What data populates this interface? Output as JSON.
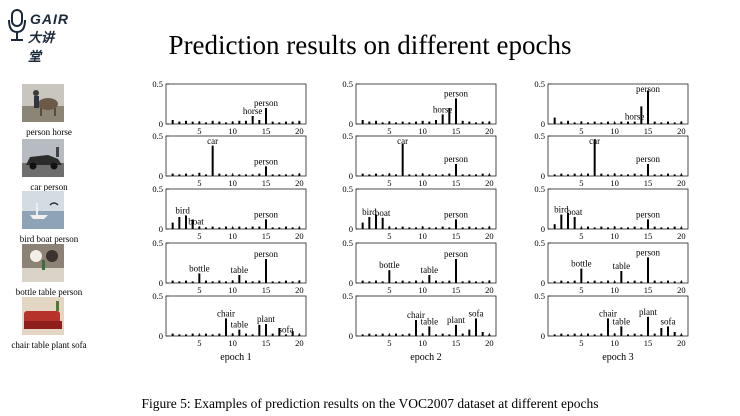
{
  "slide": {
    "logo_en": "GAIR",
    "logo_cn": "大讲堂",
    "title": "Prediction results on different epochs",
    "caption": "Figure 5: Examples of prediction results on the VOC2007 dataset at different epochs"
  },
  "rows": [
    {
      "image_label": "person horse",
      "image_icon": "person-horse-photo"
    },
    {
      "image_label": "car person",
      "image_icon": "car-person-photo"
    },
    {
      "image_label": "bird boat person",
      "image_icon": "bird-boat-person-photo"
    },
    {
      "image_label": "bottle table person",
      "image_icon": "bottle-table-person-photo"
    },
    {
      "image_label": "chair table plant sofa",
      "image_icon": "chair-table-plant-sofa-photo"
    }
  ],
  "chart_data": {
    "type": "bar",
    "categories": [
      1,
      2,
      3,
      4,
      5,
      6,
      7,
      8,
      9,
      10,
      11,
      12,
      13,
      14,
      15,
      16,
      17,
      18,
      19,
      20
    ],
    "xticks": [
      5,
      10,
      15,
      20
    ],
    "yticks": [
      0,
      0.5
    ],
    "ylim": [
      0,
      0.5
    ],
    "xlim": [
      0,
      21
    ],
    "epochs": [
      "epoch 1",
      "epoch 2",
      "epoch 3"
    ],
    "panels": [
      [
        {
          "values": [
            0.05,
            0.03,
            0.04,
            0.03,
            0.03,
            0.02,
            0.04,
            0.03,
            0.02,
            0.03,
            0.04,
            0.04,
            0.1,
            0.05,
            0.2,
            0.03,
            0.02,
            0.03,
            0.03,
            0.04
          ],
          "annotations": [
            {
              "text": "horse",
              "x": 13
            },
            {
              "text": "person",
              "x": 15
            }
          ]
        },
        {
          "values": [
            0.03,
            0.02,
            0.03,
            0.02,
            0.04,
            0.02,
            0.38,
            0.03,
            0.02,
            0.02,
            0.02,
            0.02,
            0.02,
            0.03,
            0.12,
            0.02,
            0.02,
            0.02,
            0.02,
            0.03
          ],
          "annotations": [
            {
              "text": "car",
              "x": 7
            },
            {
              "text": "person",
              "x": 15
            }
          ]
        },
        {
          "values": [
            0.08,
            0.15,
            0.17,
            0.12,
            0.03,
            0.02,
            0.03,
            0.02,
            0.03,
            0.02,
            0.03,
            0.02,
            0.03,
            0.03,
            0.12,
            0.02,
            0.02,
            0.03,
            0.02,
            0.02
          ],
          "annotations": [
            {
              "text": "bird",
              "x": 2.5
            },
            {
              "text": "boat",
              "x": 4.5
            },
            {
              "text": "person",
              "x": 15
            }
          ]
        },
        {
          "values": [
            0.03,
            0.02,
            0.03,
            0.02,
            0.12,
            0.03,
            0.02,
            0.03,
            0.02,
            0.03,
            0.1,
            0.03,
            0.02,
            0.03,
            0.3,
            0.02,
            0.02,
            0.03,
            0.02,
            0.03
          ],
          "annotations": [
            {
              "text": "bottle",
              "x": 5
            },
            {
              "text": "table",
              "x": 11
            },
            {
              "text": "person",
              "x": 15
            }
          ]
        },
        {
          "values": [
            0.03,
            0.02,
            0.02,
            0.03,
            0.02,
            0.03,
            0.02,
            0.03,
            0.22,
            0.03,
            0.08,
            0.03,
            0.02,
            0.14,
            0.15,
            0.03,
            0.1,
            0.02,
            0.06,
            0.02
          ],
          "annotations": [
            {
              "text": "chair",
              "x": 9
            },
            {
              "text": "table",
              "x": 11
            },
            {
              "text": "plant",
              "x": 15
            },
            {
              "text": "sofa",
              "x": 18
            }
          ]
        }
      ],
      [
        {
          "values": [
            0.05,
            0.03,
            0.04,
            0.02,
            0.03,
            0.02,
            0.03,
            0.02,
            0.03,
            0.04,
            0.03,
            0.05,
            0.12,
            0.2,
            0.32,
            0.04,
            0.03,
            0.02,
            0.03,
            0.03
          ],
          "annotations": [
            {
              "text": "horse",
              "x": 13
            },
            {
              "text": "person",
              "x": 15
            }
          ]
        },
        {
          "values": [
            0.03,
            0.02,
            0.03,
            0.02,
            0.03,
            0.02,
            0.4,
            0.02,
            0.02,
            0.03,
            0.02,
            0.02,
            0.02,
            0.03,
            0.15,
            0.02,
            0.02,
            0.02,
            0.03,
            0.02
          ],
          "annotations": [
            {
              "text": "car",
              "x": 7
            },
            {
              "text": "person",
              "x": 15
            }
          ]
        },
        {
          "values": [
            0.08,
            0.15,
            0.18,
            0.14,
            0.03,
            0.02,
            0.03,
            0.02,
            0.02,
            0.03,
            0.02,
            0.02,
            0.03,
            0.02,
            0.12,
            0.02,
            0.03,
            0.02,
            0.02,
            0.03
          ],
          "annotations": [
            {
              "text": "bird",
              "x": 2
            },
            {
              "text": "boat",
              "x": 4
            },
            {
              "text": "person",
              "x": 15
            }
          ]
        },
        {
          "values": [
            0.03,
            0.02,
            0.03,
            0.02,
            0.16,
            0.02,
            0.03,
            0.02,
            0.03,
            0.02,
            0.1,
            0.03,
            0.02,
            0.03,
            0.3,
            0.02,
            0.03,
            0.02,
            0.02,
            0.03
          ],
          "annotations": [
            {
              "text": "bottle",
              "x": 5
            },
            {
              "text": "table",
              "x": 11
            },
            {
              "text": "person",
              "x": 15
            }
          ]
        },
        {
          "values": [
            0.02,
            0.03,
            0.02,
            0.03,
            0.02,
            0.03,
            0.02,
            0.03,
            0.2,
            0.03,
            0.12,
            0.02,
            0.03,
            0.02,
            0.14,
            0.03,
            0.08,
            0.22,
            0.05,
            0.02
          ],
          "annotations": [
            {
              "text": "chair",
              "x": 9
            },
            {
              "text": "table",
              "x": 11
            },
            {
              "text": "plant",
              "x": 15
            },
            {
              "text": "sofa",
              "x": 18
            }
          ]
        }
      ],
      [
        {
          "values": [
            0.08,
            0.03,
            0.04,
            0.02,
            0.03,
            0.02,
            0.03,
            0.02,
            0.03,
            0.02,
            0.03,
            0.03,
            0.03,
            0.22,
            0.42,
            0.03,
            0.02,
            0.03,
            0.02,
            0.03
          ],
          "annotations": [
            {
              "text": "horse",
              "x": 13
            },
            {
              "text": "person",
              "x": 15
            }
          ]
        },
        {
          "values": [
            0.02,
            0.03,
            0.02,
            0.03,
            0.02,
            0.03,
            0.46,
            0.03,
            0.02,
            0.03,
            0.02,
            0.02,
            0.03,
            0.02,
            0.15,
            0.02,
            0.02,
            0.03,
            0.02,
            0.02
          ],
          "annotations": [
            {
              "text": "car",
              "x": 7
            },
            {
              "text": "person",
              "x": 15
            }
          ]
        },
        {
          "values": [
            0.06,
            0.18,
            0.2,
            0.15,
            0.02,
            0.03,
            0.02,
            0.03,
            0.02,
            0.03,
            0.02,
            0.02,
            0.03,
            0.02,
            0.12,
            0.03,
            0.02,
            0.02,
            0.03,
            0.02
          ],
          "annotations": [
            {
              "text": "bird",
              "x": 2
            },
            {
              "text": "boat",
              "x": 4
            },
            {
              "text": "person",
              "x": 15
            }
          ]
        },
        {
          "values": [
            0.02,
            0.03,
            0.02,
            0.03,
            0.18,
            0.02,
            0.03,
            0.02,
            0.03,
            0.02,
            0.15,
            0.02,
            0.03,
            0.02,
            0.32,
            0.03,
            0.02,
            0.03,
            0.02,
            0.02
          ],
          "annotations": [
            {
              "text": "bottle",
              "x": 5
            },
            {
              "text": "table",
              "x": 11
            },
            {
              "text": "person",
              "x": 15
            }
          ]
        },
        {
          "values": [
            0.02,
            0.03,
            0.02,
            0.03,
            0.02,
            0.03,
            0.02,
            0.03,
            0.22,
            0.03,
            0.12,
            0.02,
            0.03,
            0.02,
            0.24,
            0.03,
            0.1,
            0.12,
            0.05,
            0.02
          ],
          "annotations": [
            {
              "text": "chair",
              "x": 9
            },
            {
              "text": "table",
              "x": 11
            },
            {
              "text": "plant",
              "x": 15
            },
            {
              "text": "sofa",
              "x": 18
            }
          ]
        }
      ]
    ]
  }
}
